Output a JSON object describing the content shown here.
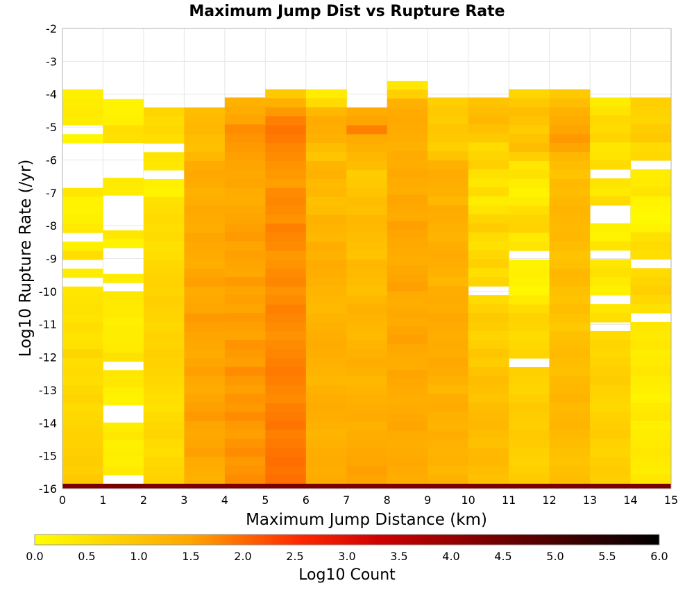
{
  "chart_data": {
    "type": "heatmap",
    "title": "Maximum Jump Dist vs Rupture Rate",
    "xlabel": "Maximum Jump Distance (km)",
    "ylabel": "Log10 Rupture Rate (/yr)",
    "colorbar_label": "Log10 Count",
    "xlim": [
      0,
      15
    ],
    "ylim": [
      -16,
      -2
    ],
    "x_ticks": [
      "0",
      "1",
      "2",
      "3",
      "4",
      "5",
      "6",
      "7",
      "8",
      "9",
      "10",
      "11",
      "12",
      "13",
      "14",
      "15"
    ],
    "y_ticks": [
      "-2",
      "-3",
      "-4",
      "-5",
      "-6",
      "-7",
      "-8",
      "-9",
      "-10",
      "-11",
      "-12",
      "-13",
      "-14",
      "-15",
      "-16"
    ],
    "colorbar_ticks": [
      "0.0",
      "0.5",
      "1.0",
      "1.5",
      "2.0",
      "2.5",
      "3.0",
      "3.5",
      "4.0",
      "4.5",
      "5.0",
      "5.5",
      "6.0"
    ],
    "color_range": [
      0,
      6
    ],
    "colormap": [
      "#ffff00",
      "#ffa500",
      "#ff0000",
      "#c80000",
      "#000000"
    ],
    "grid": true,
    "x_bin_width": 1,
    "y_bin_height": 0.286,
    "y_bins_top": -3.7,
    "bottom_row": {
      "y_range": [
        -16,
        -15.85
      ],
      "value": 4.6,
      "color": "#7a0000"
    },
    "columns": [
      {
        "x_range": [
          0,
          1
        ],
        "top": -3.85,
        "profile": [
          0.25,
          0.3,
          0.35,
          0.3,
          null,
          0.15,
          null,
          null,
          null,
          null,
          null,
          0.4,
          0.2,
          0.2,
          0.25,
          0.35,
          null,
          0.25,
          0.55,
          null,
          0.3,
          null,
          0.4,
          0.45,
          0.5,
          0.45,
          0.55,
          0.45,
          0.5,
          0.7,
          0.55,
          0.6,
          0.55,
          0.65,
          0.7,
          0.6,
          0.65,
          0.7,
          0.75,
          0.75,
          0.8,
          0.85,
          0.8,
          0.9
        ]
      },
      {
        "x_range": [
          1,
          2
        ],
        "top": -4.15,
        "profile": [
          0.2,
          0.2,
          0.25,
          0.55,
          0.5,
          null,
          null,
          null,
          null,
          0.35,
          0.3,
          null,
          null,
          null,
          null,
          0.4,
          0.2,
          null,
          null,
          null,
          0.3,
          null,
          0.4,
          0.35,
          0.35,
          0.25,
          0.3,
          0.3,
          0.35,
          0.5,
          null,
          0.4,
          0.4,
          0.25,
          0.2,
          null,
          null,
          0.3,
          0.4,
          0.25,
          0.3,
          0.25,
          0.35,
          null
        ]
      },
      {
        "x_range": [
          2,
          3
        ],
        "top": -4.4,
        "profile": [
          0.7,
          0.6,
          0.65,
          0.55,
          null,
          0.45,
          0.4,
          null,
          0.25,
          0.2,
          0.5,
          0.55,
          0.6,
          0.55,
          0.6,
          0.5,
          0.55,
          0.65,
          0.7,
          0.75,
          0.7,
          0.8,
          0.75,
          0.7,
          0.65,
          0.75,
          0.7,
          0.8,
          0.75,
          0.7,
          0.65,
          0.6,
          0.55,
          0.5,
          0.6,
          0.65,
          0.7,
          0.6,
          0.55,
          0.65,
          0.7,
          0.75
        ]
      },
      {
        "x_range": [
          3,
          4
        ],
        "top": -4.4,
        "profile": [
          1.1,
          1.15,
          1.2,
          1.1,
          1.05,
          1.2,
          1.4,
          1.45,
          1.4,
          1.3,
          1.35,
          1.45,
          1.4,
          1.35,
          1.5,
          1.45,
          1.4,
          1.35,
          1.5,
          1.55,
          1.4,
          1.45,
          1.5,
          1.6,
          1.55,
          1.5,
          1.45,
          1.4,
          1.5,
          1.55,
          1.45,
          1.4,
          1.5,
          1.55,
          1.6,
          1.5,
          1.45,
          1.5,
          1.55,
          1.4,
          1.35,
          1.3
        ]
      },
      {
        "x_range": [
          4,
          5
        ],
        "top": -4.1,
        "profile": [
          1.3,
          1.4,
          1.5,
          1.7,
          1.65,
          1.6,
          1.55,
          1.5,
          1.45,
          1.5,
          1.4,
          1.35,
          1.45,
          1.5,
          1.55,
          1.6,
          1.5,
          1.55,
          1.5,
          1.45,
          1.6,
          1.5,
          1.55,
          1.5,
          1.6,
          1.55,
          1.5,
          1.65,
          1.6,
          1.55,
          1.7,
          1.6,
          1.55,
          1.65,
          1.6,
          1.7,
          1.6,
          1.55,
          1.65,
          1.7,
          1.6,
          1.65,
          1.7
        ]
      },
      {
        "x_range": [
          5,
          6
        ],
        "top": -3.85,
        "profile": [
          0.9,
          1.3,
          1.6,
          1.8,
          1.9,
          1.85,
          1.75,
          1.7,
          1.65,
          1.6,
          1.55,
          1.7,
          1.75,
          1.7,
          1.65,
          1.8,
          1.75,
          1.7,
          1.6,
          1.65,
          1.7,
          1.75,
          1.65,
          1.7,
          1.8,
          1.75,
          1.7,
          1.65,
          1.7,
          1.75,
          1.8,
          1.85,
          1.8,
          1.75,
          1.7,
          1.8,
          1.85,
          1.9,
          1.8,
          1.85,
          1.9,
          1.95,
          1.9,
          1.95
        ]
      },
      {
        "x_range": [
          6,
          7
        ],
        "top": -3.85,
        "profile": [
          0.3,
          0.6,
          1.2,
          1.4,
          1.35,
          1.3,
          1.1,
          0.95,
          1.25,
          1.3,
          1.15,
          1.2,
          1.05,
          1.1,
          1.3,
          1.25,
          1.2,
          1.35,
          1.3,
          1.4,
          1.35,
          1.3,
          1.25,
          1.2,
          1.15,
          1.25,
          1.3,
          1.35,
          1.4,
          1.35,
          1.3,
          1.25,
          1.2,
          1.3,
          1.35,
          1.4,
          1.35,
          1.3,
          1.25,
          1.3,
          1.35,
          1.4,
          1.35,
          1.4
        ]
      },
      {
        "x_range": [
          7,
          8
        ],
        "top": -4.4,
        "profile": [
          1.4,
          1.5,
          1.8,
          1.4,
          1.3,
          1.2,
          1.1,
          0.85,
          0.9,
          1.0,
          1.1,
          1.05,
          1.2,
          1.15,
          1.1,
          1.05,
          1.0,
          1.2,
          1.15,
          1.1,
          1.05,
          1.2,
          1.3,
          1.25,
          1.2,
          1.15,
          1.25,
          1.3,
          1.35,
          1.3,
          1.2,
          1.25,
          1.3,
          1.35,
          1.4,
          1.3,
          1.35,
          1.4,
          1.45,
          1.5,
          1.55,
          1.5
        ]
      },
      {
        "x_range": [
          8,
          9
        ],
        "top": -3.6,
        "profile": [
          0.4,
          0.8,
          1.3,
          1.4,
          1.45,
          1.4,
          1.35,
          1.3,
          1.4,
          1.35,
          1.45,
          1.4,
          1.35,
          1.5,
          1.45,
          1.4,
          1.55,
          1.5,
          1.45,
          1.4,
          1.35,
          1.45,
          1.5,
          1.55,
          1.4,
          1.35,
          1.45,
          1.4,
          1.5,
          1.55,
          1.45,
          1.4,
          1.35,
          1.5,
          1.45,
          1.4,
          1.35,
          1.4,
          1.45,
          1.5,
          1.4,
          1.35,
          1.4,
          1.45,
          1.4,
          1.35
        ]
      },
      {
        "x_range": [
          9,
          10
        ],
        "top": -4.1,
        "profile": [
          0.8,
          0.9,
          0.85,
          0.95,
          0.9,
          0.8,
          1.0,
          1.3,
          1.4,
          1.35,
          1.3,
          1.2,
          1.4,
          1.35,
          1.3,
          1.25,
          1.35,
          1.4,
          1.35,
          1.3,
          1.2,
          1.35,
          1.4,
          1.35,
          1.45,
          1.4,
          1.35,
          1.4,
          1.35,
          1.45,
          1.4,
          1.3,
          1.2,
          1.35,
          1.4,
          1.3,
          1.25,
          1.35,
          1.3,
          1.25,
          1.3,
          1.2,
          1.3
        ]
      },
      {
        "x_range": [
          10,
          11
        ],
        "top": -4.1,
        "profile": [
          1.0,
          1.1,
          1.2,
          1.05,
          0.9,
          0.6,
          0.7,
          0.8,
          0.5,
          0.4,
          0.6,
          0.3,
          0.45,
          0.7,
          0.85,
          0.6,
          0.5,
          0.65,
          0.8,
          0.55,
          0.7,
          null,
          0.6,
          0.75,
          0.9,
          0.85,
          0.7,
          0.8,
          0.95,
          0.85,
          1.0,
          1.1,
          1.05,
          1.0,
          1.1,
          1.15,
          1.2,
          1.1,
          1.05,
          1.15,
          1.2,
          1.1,
          1.05
        ]
      },
      {
        "x_range": [
          11,
          12
        ],
        "top": -3.85,
        "profile": [
          0.7,
          0.9,
          1.1,
          1.0,
          0.85,
          1.0,
          1.1,
          0.8,
          0.4,
          0.5,
          0.3,
          0.2,
          0.3,
          0.55,
          0.7,
          0.75,
          0.35,
          0.45,
          null,
          0.2,
          0.25,
          0.2,
          0.15,
          0.35,
          0.6,
          0.75,
          0.7,
          0.6,
          0.65,
          0.7,
          null,
          0.8,
          0.75,
          0.7,
          0.8,
          0.9,
          0.85,
          0.8,
          0.9,
          0.85,
          0.8,
          0.75,
          0.8,
          0.85
        ]
      },
      {
        "x_range": [
          12,
          13
        ],
        "top": -3.85,
        "profile": [
          0.9,
          1.1,
          1.3,
          1.4,
          1.5,
          1.6,
          1.5,
          1.2,
          1.1,
          1.0,
          1.15,
          1.1,
          1.2,
          1.25,
          1.2,
          1.15,
          1.2,
          1.1,
          1.0,
          1.05,
          1.2,
          1.15,
          1.05,
          1.0,
          1.1,
          1.0,
          0.9,
          1.05,
          1.1,
          1.15,
          1.1,
          1.05,
          1.15,
          1.2,
          1.25,
          1.15,
          1.2,
          1.25,
          1.15,
          1.1,
          1.05,
          1.0,
          1.05,
          1.1
        ]
      },
      {
        "x_range": [
          13,
          14
        ],
        "top": -4.1,
        "profile": [
          0.3,
          0.45,
          0.65,
          0.6,
          0.7,
          0.4,
          0.45,
          0.6,
          null,
          0.45,
          0.35,
          0.6,
          null,
          null,
          0.25,
          0.2,
          0.45,
          null,
          0.4,
          0.5,
          0.35,
          0.25,
          null,
          0.4,
          0.55,
          null,
          0.6,
          0.7,
          0.65,
          0.75,
          0.8,
          0.85,
          0.75,
          0.7,
          0.65,
          0.75,
          0.8,
          0.85,
          0.75,
          0.7,
          0.8,
          0.85,
          0.8
        ]
      },
      {
        "x_range": [
          14,
          15
        ],
        "top": -4.1,
        "profile": [
          0.8,
          0.75,
          0.7,
          0.85,
          0.9,
          0.6,
          0.65,
          null,
          0.3,
          0.35,
          0.45,
          0.2,
          0.15,
          0.1,
          0.2,
          0.5,
          0.6,
          0.55,
          null,
          0.6,
          0.7,
          0.8,
          0.65,
          0.5,
          null,
          0.4,
          0.35,
          0.4,
          0.3,
          0.35,
          0.4,
          0.3,
          0.25,
          0.2,
          0.35,
          0.4,
          0.25,
          0.3,
          0.35,
          0.4,
          0.35,
          0.3,
          0.4
        ]
      }
    ]
  }
}
